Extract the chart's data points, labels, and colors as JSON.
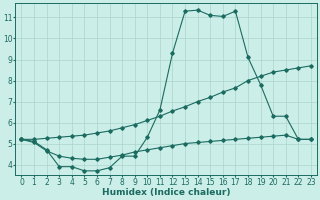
{
  "xlabel": "Humidex (Indice chaleur)",
  "bg_color": "#cceee8",
  "line_color": "#1a6b60",
  "grid_color": "#aad4cc",
  "xlim": [
    -0.5,
    23.5
  ],
  "ylim": [
    3.5,
    11.7
  ],
  "xticks": [
    0,
    1,
    2,
    3,
    4,
    5,
    6,
    7,
    8,
    9,
    10,
    11,
    12,
    13,
    14,
    15,
    16,
    17,
    18,
    19,
    20,
    21,
    22,
    23
  ],
  "yticks": [
    4,
    5,
    6,
    7,
    8,
    9,
    10,
    11
  ],
  "line1_x": [
    0,
    1,
    2,
    3,
    4,
    5,
    6,
    7,
    8,
    9,
    10,
    11,
    12,
    13,
    14,
    15,
    16,
    17,
    18,
    19,
    20,
    21,
    22,
    23
  ],
  "line1_y": [
    5.2,
    5.1,
    4.7,
    3.9,
    3.9,
    3.7,
    3.7,
    3.85,
    4.4,
    4.4,
    5.3,
    6.6,
    9.3,
    11.3,
    11.35,
    11.1,
    11.05,
    11.3,
    9.1,
    7.8,
    6.3,
    6.3,
    5.2,
    5.2
  ],
  "line2_x": [
    0,
    1,
    2,
    3,
    4,
    5,
    6,
    7,
    8,
    9,
    10,
    11,
    12,
    13,
    14,
    15,
    16,
    17,
    18,
    19,
    20,
    21,
    22,
    23
  ],
  "line2_y": [
    5.2,
    5.2,
    5.25,
    5.3,
    5.35,
    5.4,
    5.5,
    5.6,
    5.75,
    5.9,
    6.1,
    6.3,
    6.55,
    6.75,
    7.0,
    7.2,
    7.45,
    7.65,
    8.0,
    8.2,
    8.4,
    8.5,
    8.6,
    8.7
  ],
  "line3_x": [
    0,
    1,
    2,
    3,
    4,
    5,
    6,
    7,
    8,
    9,
    10,
    11,
    12,
    13,
    14,
    15,
    16,
    17,
    18,
    19,
    20,
    21,
    22,
    23
  ],
  "line3_y": [
    5.2,
    5.05,
    4.65,
    4.4,
    4.3,
    4.25,
    4.25,
    4.35,
    4.45,
    4.6,
    4.7,
    4.8,
    4.9,
    5.0,
    5.05,
    5.1,
    5.15,
    5.2,
    5.25,
    5.3,
    5.35,
    5.4,
    5.2,
    5.2
  ],
  "marker": "D",
  "marker_size": 1.8,
  "linewidth": 0.8,
  "xlabel_fontsize": 6.5,
  "tick_fontsize": 5.5
}
